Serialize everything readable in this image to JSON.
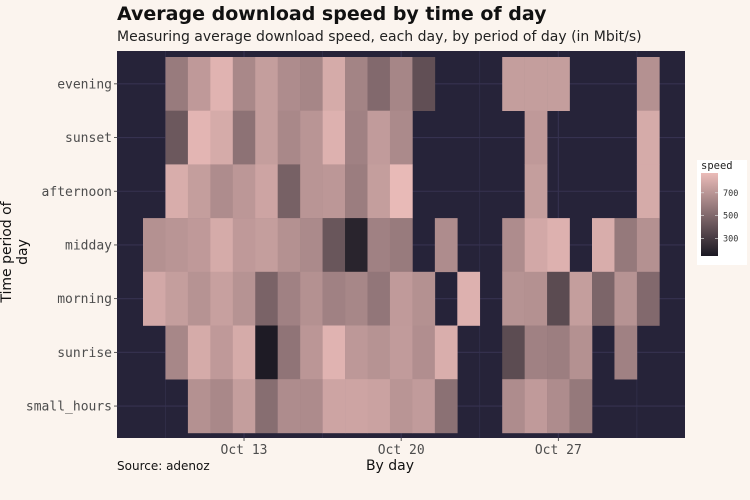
{
  "chart_data": {
    "type": "heatmap",
    "title": "Average download speed by time of day",
    "subtitle": "Measuring average download speed, each day, by period of day (in Mbit/s)",
    "caption": "Source: adenoz",
    "xlabel": "By day",
    "ylabel": "Time period of day",
    "x_ticks": [
      "Oct 13",
      "Oct 20",
      "Oct 27"
    ],
    "x": [
      "Oct 9",
      "Oct 10",
      "Oct 11",
      "Oct 12",
      "Oct 13",
      "Oct 14",
      "Oct 15",
      "Oct 16",
      "Oct 17",
      "Oct 18",
      "Oct 19",
      "Oct 20",
      "Oct 21",
      "Oct 22",
      "Oct 23",
      "Oct 24",
      "Oct 25",
      "Oct 26",
      "Oct 27",
      "Oct 28",
      "Oct 29",
      "Oct 30",
      "Oct 31"
    ],
    "y": [
      "evening",
      "sunset",
      "afternoon",
      "midday",
      "morning",
      "sunrise",
      "small_hours"
    ],
    "values": [
      [
        null,
        600,
        740,
        860,
        660,
        760,
        680,
        650,
        820,
        640,
        520,
        650,
        400,
        null,
        null,
        null,
        760,
        760,
        760,
        null,
        null,
        null,
        700
      ],
      [
        null,
        440,
        870,
        820,
        560,
        760,
        660,
        720,
        850,
        630,
        750,
        670,
        null,
        null,
        null,
        null,
        null,
        740,
        null,
        null,
        null,
        null,
        820
      ],
      [
        null,
        830,
        760,
        680,
        730,
        790,
        480,
        720,
        730,
        610,
        760,
        890,
        null,
        null,
        null,
        null,
        null,
        760,
        null,
        null,
        null,
        null,
        820
      ],
      [
        700,
        720,
        740,
        820,
        740,
        760,
        700,
        670,
        430,
        200,
        630,
        600,
        null,
        680,
        null,
        null,
        680,
        810,
        850,
        null,
        830,
        590,
        700
      ],
      [
        810,
        760,
        710,
        770,
        710,
        490,
        630,
        700,
        630,
        655,
        580,
        745,
        700,
        null,
        850,
        null,
        710,
        700,
        380,
        760,
        500,
        710,
        520
      ],
      [
        null,
        655,
        820,
        740,
        820,
        160,
        570,
        725,
        860,
        735,
        710,
        750,
        690,
        835,
        null,
        null,
        385,
        630,
        615,
        700,
        null,
        630,
        null
      ],
      [
        null,
        null,
        700,
        660,
        760,
        540,
        680,
        675,
        790,
        790,
        780,
        720,
        750,
        555,
        null,
        null,
        680,
        745,
        680,
        590,
        null,
        null,
        null
      ]
    ],
    "legend": {
      "title": "speed",
      "ticks": [
        300,
        500,
        700
      ],
      "position": "right"
    },
    "color_range": [
      145,
      900
    ],
    "colors": {
      "low": "#1a1822",
      "high": "#ebbcb9",
      "panel": "#262339",
      "grid": "#363250",
      "background": "#fbf4ee"
    },
    "grid": true
  }
}
